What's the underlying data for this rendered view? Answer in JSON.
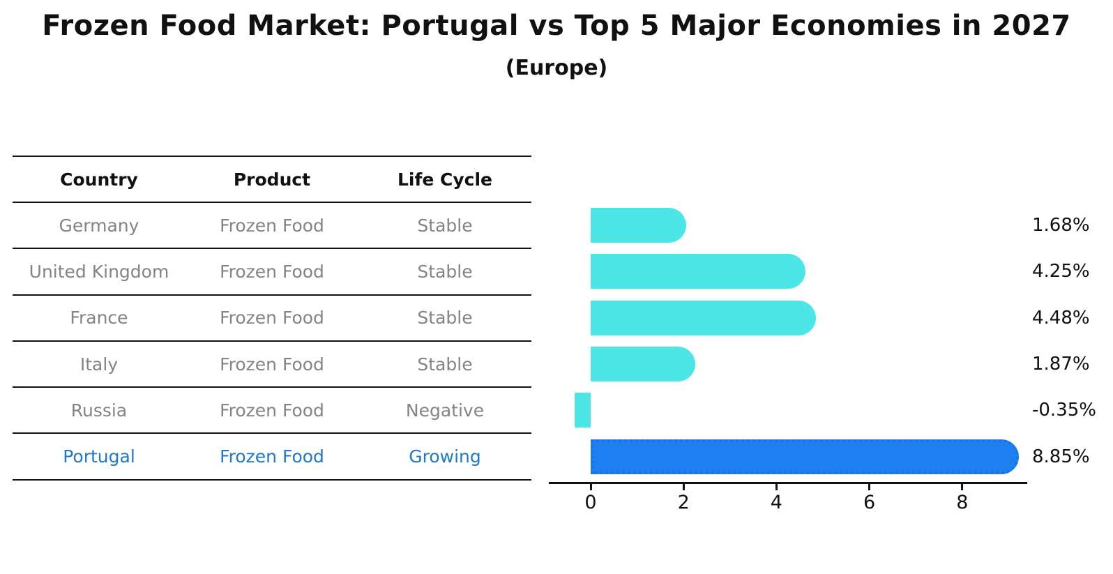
{
  "title": "Frozen Food Market: Portugal vs Top 5 Major Economies in 2027",
  "subtitle": "(Europe)",
  "table": {
    "headers": [
      "Country",
      "Product",
      "Life Cycle"
    ],
    "rows": [
      {
        "country": "Germany",
        "product": "Frozen Food",
        "life_cycle": "Stable",
        "highlight": false
      },
      {
        "country": "United Kingdom",
        "product": "Frozen Food",
        "life_cycle": "Stable",
        "highlight": false
      },
      {
        "country": "France",
        "product": "Frozen Food",
        "life_cycle": "Stable",
        "highlight": false
      },
      {
        "country": "Italy",
        "product": "Frozen Food",
        "life_cycle": "Stable",
        "highlight": false
      },
      {
        "country": "Russia",
        "product": "Frozen Food",
        "life_cycle": "Negative",
        "highlight": false
      },
      {
        "country": "Portugal",
        "product": "Frozen Food",
        "life_cycle": "Growing",
        "highlight": true
      }
    ]
  },
  "chart_data": {
    "type": "bar",
    "orientation": "horizontal",
    "title": "Frozen Food Market: Portugal vs Top 5 Major Economies in 2027",
    "subtitle": "(Europe)",
    "categories": [
      "Germany",
      "United Kingdom",
      "France",
      "Italy",
      "Russia",
      "Portugal"
    ],
    "values": [
      1.68,
      4.25,
      4.48,
      1.87,
      -0.35,
      8.85
    ],
    "value_labels": [
      "1.68%",
      "4.25%",
      "4.48%",
      "1.87%",
      "-0.35%",
      "8.85%"
    ],
    "xticks": [
      0,
      2,
      4,
      6,
      8
    ],
    "xtick_labels": [
      "0",
      "2",
      "4",
      "6",
      "8"
    ],
    "xlim": [
      -0.9,
      9.4
    ],
    "grid": false,
    "legend": "none",
    "highlight_index": 5
  },
  "colors": {
    "bar_default": "#4ce6e6",
    "bar_highlight": "#1e80f0",
    "bar_highlight_border": "#1a74e0",
    "highlight_text": "#1f78c8",
    "row_text": "#848484",
    "axis": "#111111"
  }
}
